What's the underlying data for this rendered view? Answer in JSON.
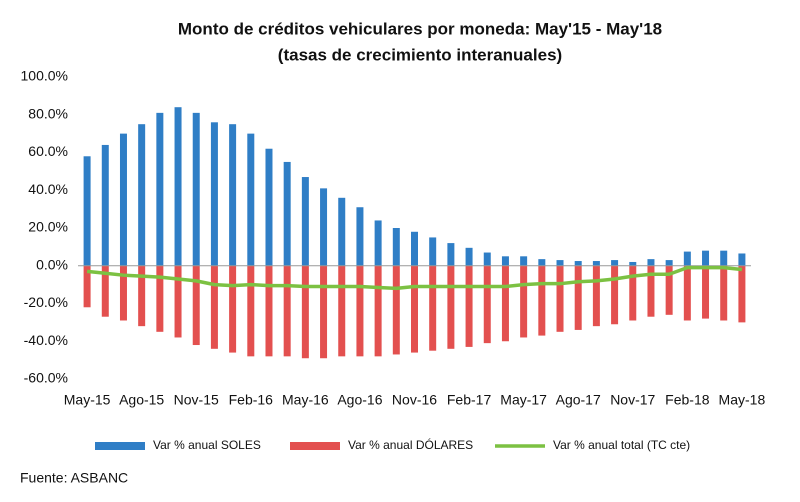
{
  "chart_data": {
    "type": "bar",
    "title": "Monto de créditos vehiculares por moneda: May'15 - May'18",
    "subtitle": "(tasas de crecimiento interanuales)",
    "source": "Fuente: ASBANC",
    "categories": [
      "May-15",
      null,
      null,
      "Ago-15",
      null,
      null,
      "Nov-15",
      null,
      null,
      "Feb-16",
      null,
      null,
      "May-16",
      null,
      null,
      "Ago-16",
      null,
      null,
      "Nov-16",
      null,
      null,
      "Feb-17",
      null,
      null,
      "May-17",
      null,
      null,
      "Ago-17",
      null,
      null,
      "Nov-17",
      null,
      null,
      "Feb-18",
      null,
      null,
      "May-18"
    ],
    "series": [
      {
        "name": "Var % anual SOLES",
        "color": "#2f7ec6",
        "kind": "bar",
        "values": [
          58,
          64,
          70,
          75,
          81,
          84,
          81,
          76,
          75,
          70,
          62,
          55,
          47,
          41,
          36,
          31,
          24,
          20,
          18,
          15,
          12,
          9.5,
          7,
          5,
          5,
          3.5,
          3,
          2.5,
          2.5,
          3,
          2,
          3.5,
          3,
          7.5,
          8,
          8,
          6.5
        ]
      },
      {
        "name": "Var % anual DÓLARES",
        "color": "#e3504f",
        "kind": "bar",
        "values": [
          -22,
          -27,
          -29,
          -32,
          -35,
          -38,
          -42,
          -44,
          -46,
          -48,
          -48,
          -48,
          -49,
          -49,
          -48,
          -48,
          -48,
          -47,
          -46,
          -45,
          -44,
          -43,
          -41,
          -40,
          -38,
          -37,
          -35,
          -34,
          -32,
          -31,
          -29,
          -27,
          -26,
          -29,
          -28,
          -29,
          -30
        ]
      },
      {
        "name": "Var % anual total (TC cte)",
        "color": "#7cc142",
        "kind": "line",
        "values": [
          -3,
          -4,
          -5,
          -5.5,
          -6,
          -7,
          -8,
          -10,
          -10.5,
          -10,
          -10.5,
          -10.5,
          -11,
          -11,
          -11,
          -11,
          -11.5,
          -12,
          -11,
          -11,
          -11,
          -11,
          -11,
          -11,
          -10,
          -9.5,
          -9.5,
          -8.5,
          -8,
          -7,
          -5.5,
          -4.5,
          -4.5,
          -1,
          -1,
          -1,
          -2
        ]
      }
    ],
    "ylim": [
      -60,
      100
    ],
    "yticks": [
      {
        "value": -60,
        "label": "-60.0%"
      },
      {
        "value": -40,
        "label": "-40.0%"
      },
      {
        "value": -20,
        "label": "-20.0%"
      },
      {
        "value": 0,
        "label": "0.0%"
      },
      {
        "value": 20,
        "label": "20.0%"
      },
      {
        "value": 40,
        "label": "40.0%"
      },
      {
        "value": 60,
        "label": "60.0%"
      },
      {
        "value": 80,
        "label": "80.0%"
      },
      {
        "value": 100,
        "label": "100.0%"
      }
    ],
    "grid": false
  }
}
